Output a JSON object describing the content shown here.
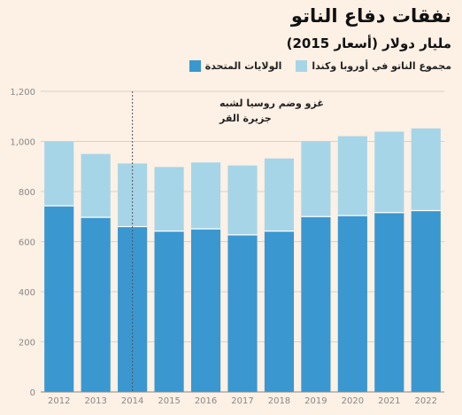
{
  "header": {
    "title": "نفقات دفاع الناتو",
    "subtitle": "مليار دولار (أسعار 2015)"
  },
  "colors": {
    "background": "#fdf0e4",
    "us": "#3a97d0",
    "others": "#a6d5e8",
    "grid": "#d8d2cc",
    "annotation_line": "#555555"
  },
  "chart_data": {
    "type": "bar",
    "stacked": true,
    "title": "نفقات دفاع الناتو",
    "subtitle": "مليار دولار (أسعار 2015)",
    "categories": [
      "2012",
      "2013",
      "2014",
      "2015",
      "2016",
      "2017",
      "2018",
      "2019",
      "2020",
      "2021",
      "2022"
    ],
    "series": [
      {
        "name": "الولايات المتحدة",
        "color": "#3a97d0",
        "values": [
          743,
          697,
          660,
          642,
          651,
          627,
          642,
          700,
          704,
          716,
          724
        ]
      },
      {
        "name": "مجموع الناتو في أوروبا وكندا",
        "color": "#a6d5e8",
        "values": [
          257,
          253,
          252,
          256,
          265,
          277,
          290,
          301,
          317,
          323,
          328
        ]
      }
    ],
    "totals": [
      1000,
      950,
      912,
      898,
      916,
      904,
      932,
      1001,
      1021,
      1039,
      1052
    ],
    "ylim": [
      0,
      1200
    ],
    "yticks": [
      0,
      200,
      400,
      600,
      800,
      1000,
      1200
    ],
    "ytick_labels": [
      "0",
      "200",
      "400",
      "600",
      "800",
      "1,000",
      "1,200"
    ],
    "grid": true,
    "legend_position": "top-right",
    "annotation": {
      "category": "2014",
      "lines": [
        "غزو وضم روسيا لشبه",
        "جزيرة القر"
      ]
    }
  }
}
